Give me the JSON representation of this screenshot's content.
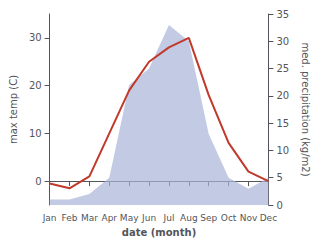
{
  "chart_data": {
    "type": "line",
    "categories": [
      "Jan",
      "Feb",
      "Mar",
      "Apr",
      "May",
      "Jun",
      "Jul",
      "Aug",
      "Sep",
      "Oct",
      "Nov",
      "Dec"
    ],
    "series": [
      {
        "type": "area",
        "color": "#aab4d8",
        "axis": "y2",
        "values": [
          1,
          1,
          2,
          5,
          22,
          25,
          33,
          30,
          13,
          5,
          3,
          5
        ]
      },
      {
        "type": "line",
        "color": "#c0392b",
        "axis": "y",
        "values": [
          -0.5,
          -1.5,
          1,
          10,
          19,
          25,
          28,
          30,
          18,
          8,
          2,
          0
        ]
      }
    ],
    "xlabel": "date (month)",
    "ylabel": "max temp (C)",
    "y2label": "med. precipitation (kg/m2)",
    "ylim": [
      -5,
      35
    ],
    "yticks": [
      0,
      10,
      20,
      30
    ],
    "y2lim": [
      0,
      35
    ],
    "y2ticks": [
      0,
      5,
      10,
      15,
      20,
      25,
      30,
      35
    ],
    "grid": false
  }
}
